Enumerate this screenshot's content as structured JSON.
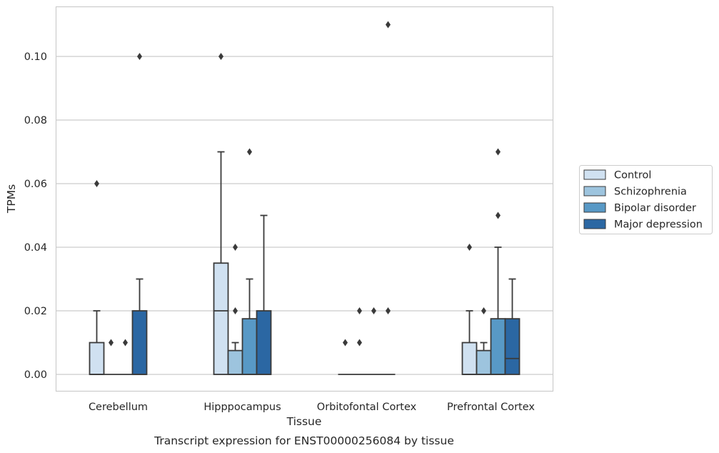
{
  "chart_data": {
    "type": "box",
    "xlabel": "Tissue",
    "ylabel": "TPMs",
    "caption": "Transcript expression for ENST00000256084 by tissue",
    "ylim": [
      -0.0055,
      0.1165
    ],
    "yticks": [
      "0.00",
      "0.02",
      "0.04",
      "0.06",
      "0.08",
      "0.10"
    ],
    "grid": true,
    "legend_position": "right",
    "categories": [
      "Cerebellum",
      "Hipppocampus",
      "Orbitofontal Cortex",
      "Prefrontal Cortex"
    ],
    "series": [
      {
        "name": "Control",
        "color": "#d0e1f1",
        "boxes": [
          {
            "q1": 0,
            "median": 0,
            "q3": 0.01,
            "whislo": 0,
            "whishi": 0.02,
            "fliers": [
              0.06
            ]
          },
          {
            "q1": 0,
            "median": 0.02,
            "q3": 0.035,
            "whislo": 0,
            "whishi": 0.07,
            "fliers": [
              0.1
            ]
          },
          {
            "q1": 0,
            "median": 0,
            "q3": 0,
            "whislo": 0,
            "whishi": 0,
            "fliers": [
              0.01
            ]
          },
          {
            "q1": 0,
            "median": 0,
            "q3": 0.01,
            "whislo": 0,
            "whishi": 0.02,
            "fliers": [
              0.04
            ]
          }
        ]
      },
      {
        "name": "Schizophrenia",
        "color": "#9dc4de",
        "boxes": [
          {
            "q1": 0,
            "median": 0,
            "q3": 0,
            "whislo": 0,
            "whishi": 0,
            "fliers": [
              0.01
            ]
          },
          {
            "q1": 0,
            "median": 0,
            "q3": 0.0075,
            "whislo": 0,
            "whishi": 0.01,
            "fliers": [
              0.02,
              0.04
            ]
          },
          {
            "q1": 0,
            "median": 0,
            "q3": 0,
            "whislo": 0,
            "whishi": 0,
            "fliers": [
              0.01,
              0.02
            ]
          },
          {
            "q1": 0,
            "median": 0,
            "q3": 0.0075,
            "whislo": 0,
            "whishi": 0.01,
            "fliers": [
              0.02
            ]
          }
        ]
      },
      {
        "name": "Bipolar disorder",
        "color": "#5899c6",
        "boxes": [
          {
            "q1": 0,
            "median": 0,
            "q3": 0,
            "whislo": 0,
            "whishi": 0,
            "fliers": [
              0.01
            ]
          },
          {
            "q1": 0,
            "median": 0,
            "q3": 0.0175,
            "whislo": 0,
            "whishi": 0.03,
            "fliers": [
              0.07
            ]
          },
          {
            "q1": 0,
            "median": 0,
            "q3": 0,
            "whislo": 0,
            "whishi": 0,
            "fliers": [
              0.02
            ]
          },
          {
            "q1": 0,
            "median": 0,
            "q3": 0.0175,
            "whislo": 0,
            "whishi": 0.04,
            "fliers": [
              0.05,
              0.07
            ]
          }
        ]
      },
      {
        "name": "Major depression",
        "color": "#2b67a3",
        "boxes": [
          {
            "q1": 0,
            "median": 0,
            "q3": 0.02,
            "whislo": 0,
            "whishi": 0.03,
            "fliers": [
              0.1
            ]
          },
          {
            "q1": 0,
            "median": 0,
            "q3": 0.02,
            "whislo": 0,
            "whishi": 0.05,
            "fliers": []
          },
          {
            "q1": 0,
            "median": 0,
            "q3": 0,
            "whislo": 0,
            "whishi": 0,
            "fliers": [
              0.02,
              0.11
            ]
          },
          {
            "q1": 0,
            "median": 0.005,
            "q3": 0.0175,
            "whislo": 0,
            "whishi": 0.03,
            "fliers": []
          }
        ]
      }
    ]
  }
}
